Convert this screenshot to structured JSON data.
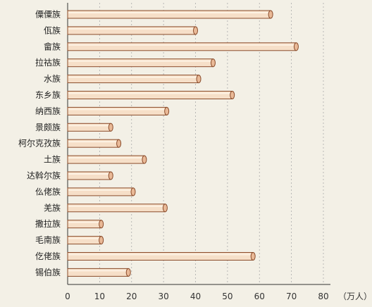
{
  "chart_data": {
    "type": "bar",
    "orientation": "horizontal",
    "categories": [
      "僳僳族",
      "佤族",
      "畲族",
      "拉祜族",
      "水族",
      "东乡族",
      "纳西族",
      "景颇族",
      "柯尔克孜族",
      "土族",
      "达斡尔族",
      "仫佬族",
      "羌族",
      "撒拉族",
      "毛南族",
      "仡佬族",
      "锡伯族"
    ],
    "values": [
      63.5,
      40,
      71.5,
      45.5,
      41,
      51.5,
      31,
      13.5,
      16,
      24,
      13.5,
      20.5,
      30.5,
      10.5,
      10.5,
      58,
      19
    ],
    "x_ticks": [
      "0",
      "10",
      "20",
      "30",
      "40",
      "50",
      "60",
      "70",
      "80"
    ],
    "xlim": [
      0,
      80
    ],
    "unit": "（万人）",
    "grid": "vertical dashed",
    "colors": {
      "bar_fill": "#f6dfc8",
      "bar_stroke": "#8a4b2a",
      "grid": "#aaaaaa",
      "axis": "#333333",
      "background": "#f3f0e6"
    }
  }
}
